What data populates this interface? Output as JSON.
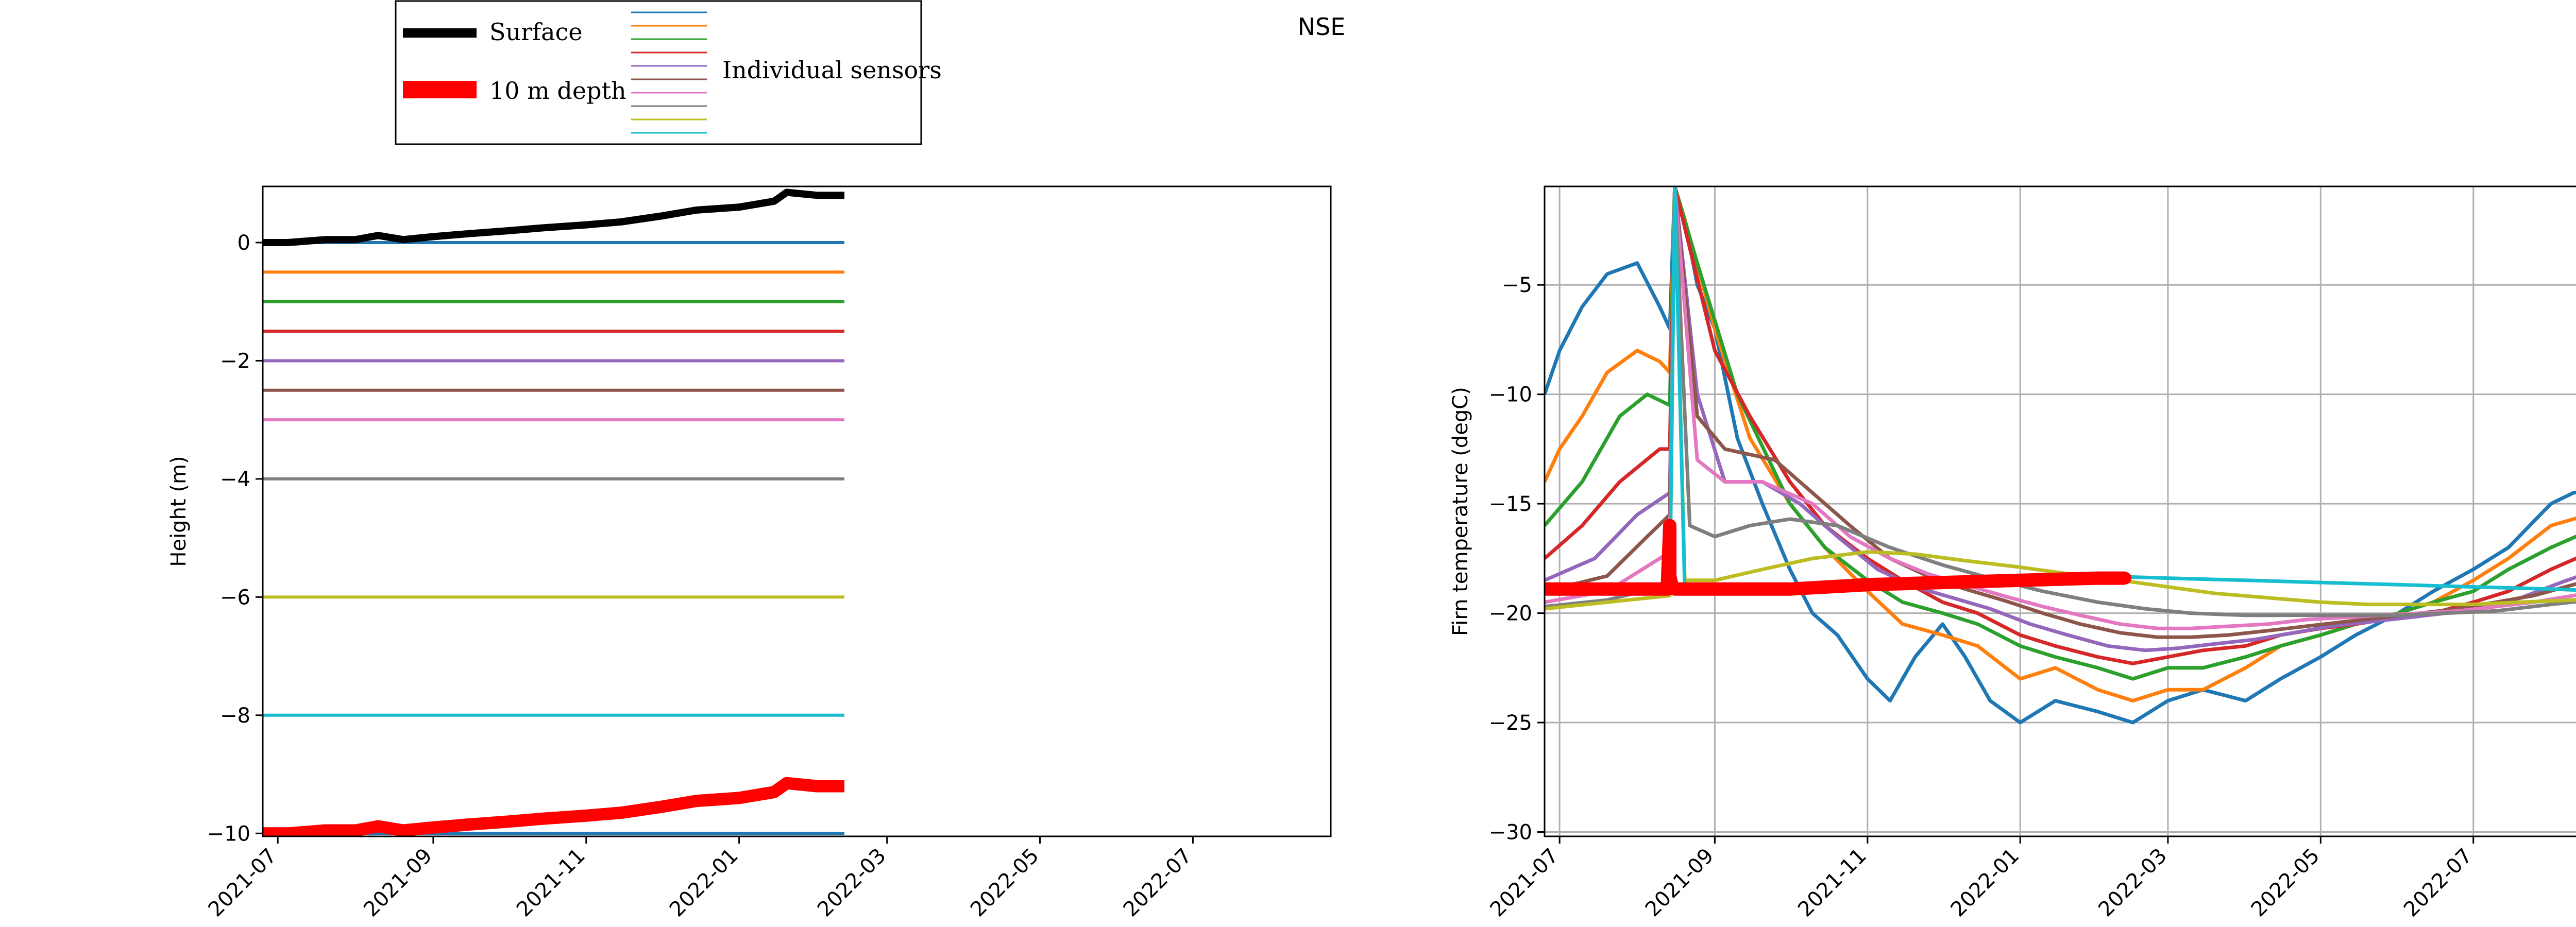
{
  "figure": {
    "title": "NSE"
  },
  "legend": {
    "placement": "top-left, above plots",
    "entries": [
      {
        "label": "Surface",
        "color": "#000000"
      },
      {
        "label": "10 m depth",
        "color": "#ff0000"
      },
      {
        "label": "Individual sensors",
        "colors": [
          "#1f77b4",
          "#ff7f0e",
          "#2ca02c",
          "#d62728",
          "#9467bd",
          "#8c564b",
          "#e377c2",
          "#7f7f7f",
          "#bcbd22",
          "#17becf"
        ]
      }
    ]
  },
  "chart_data": [
    {
      "type": "line",
      "ylabel": "Height (m)",
      "xlabel": "",
      "x_range": [
        "2021-06-25",
        "2022-08-25"
      ],
      "ylim": [
        -10.05,
        0.95
      ],
      "grid": false,
      "x_ticks": [
        "2021-07",
        "2021-09",
        "2021-11",
        "2022-01",
        "2022-03",
        "2022-05",
        "2022-07"
      ],
      "y_ticks": [
        0,
        -2,
        -4,
        -6,
        -8,
        -10
      ],
      "sensor_colors": [
        "#1f77b4",
        "#ff7f0e",
        "#2ca02c",
        "#d62728",
        "#9467bd",
        "#8c564b",
        "#e377c2",
        "#7f7f7f",
        "#bcbd22",
        "#17becf",
        "#1f77b4"
      ],
      "sensor_depths": [
        0,
        -0.5,
        -1,
        -1.5,
        -2,
        -2.5,
        -3,
        -4,
        -6,
        -8,
        -10
      ],
      "sensor_x_range": [
        "2021-06-25",
        "2022-02-12"
      ],
      "surface": {
        "name": "Surface",
        "color": "#000000",
        "x": [
          "2021-06-25",
          "2021-07-05",
          "2021-07-20",
          "2021-08-01",
          "2021-08-10",
          "2021-08-20",
          "2021-09-01",
          "2021-09-15",
          "2021-10-01",
          "2021-10-15",
          "2021-11-01",
          "2021-11-15",
          "2021-12-01",
          "2021-12-15",
          "2022-01-01",
          "2022-01-15",
          "2022-01-20",
          "2022-02-01",
          "2022-02-12"
        ],
        "y": [
          0.0,
          0.0,
          0.05,
          0.05,
          0.12,
          0.05,
          0.1,
          0.15,
          0.2,
          0.25,
          0.3,
          0.35,
          0.45,
          0.55,
          0.6,
          0.7,
          0.85,
          0.8,
          0.8
        ]
      },
      "depth10": {
        "name": "10 m depth",
        "color": "#ff0000",
        "x": [
          "2021-06-25",
          "2021-07-05",
          "2021-07-20",
          "2021-08-01",
          "2021-08-10",
          "2021-08-20",
          "2021-09-01",
          "2021-09-15",
          "2021-10-01",
          "2021-10-15",
          "2021-11-01",
          "2021-11-15",
          "2021-12-01",
          "2021-12-15",
          "2022-01-01",
          "2022-01-15",
          "2022-01-20",
          "2022-02-01",
          "2022-02-12"
        ],
        "y": [
          -10.0,
          -10.0,
          -9.95,
          -9.95,
          -9.88,
          -9.95,
          -9.9,
          -9.85,
          -9.8,
          -9.75,
          -9.7,
          -9.65,
          -9.55,
          -9.45,
          -9.4,
          -9.3,
          -9.15,
          -9.2,
          -9.2
        ]
      }
    },
    {
      "type": "line",
      "ylabel": "Firn temperature (degC)",
      "xlabel": "",
      "x_range": [
        "2021-06-25",
        "2022-08-25"
      ],
      "ylim": [
        -30.2,
        -0.5
      ],
      "grid": true,
      "x_ticks": [
        "2021-07",
        "2021-09",
        "2021-11",
        "2022-01",
        "2022-03",
        "2022-05",
        "2022-07"
      ],
      "y_ticks": [
        -5,
        -10,
        -15,
        -20,
        -25,
        -30
      ],
      "series": [
        {
          "color": "#1f77b4",
          "x": [
            "2021-06-25",
            "2021-07-01",
            "2021-07-10",
            "2021-07-20",
            "2021-08-01",
            "2021-08-10",
            "2021-08-14",
            "2021-08-16",
            "2021-08-20",
            "2021-08-25",
            "2021-09-01",
            "2021-09-10",
            "2021-09-20",
            "2021-10-01",
            "2021-10-10",
            "2021-10-20",
            "2021-11-01",
            "2021-11-10",
            "2021-11-20",
            "2021-12-01",
            "2021-12-10",
            "2021-12-20",
            "2022-01-01",
            "2022-01-15",
            "2022-02-01",
            "2022-02-15",
            "2022-03-01",
            "2022-03-15",
            "2022-04-01",
            "2022-04-15",
            "2022-05-01",
            "2022-05-15",
            "2022-06-01",
            "2022-06-15",
            "2022-07-01",
            "2022-07-15",
            "2022-08-01",
            "2022-08-10",
            "2022-08-25"
          ],
          "y": [
            -10,
            -8,
            -6,
            -4.5,
            -4,
            -6,
            -7,
            -0.5,
            -2,
            -5,
            -7,
            -12,
            -15,
            -18,
            -20,
            -21,
            -23,
            -24,
            -22,
            -20.5,
            -22,
            -24,
            -25,
            -24,
            -24.5,
            -25,
            -24,
            -23.5,
            -24,
            -23,
            -22,
            -21,
            -20,
            -19,
            -18,
            -17,
            -15,
            -14.5,
            -14.3
          ]
        },
        {
          "color": "#ff7f0e",
          "x": [
            "2021-06-25",
            "2021-07-01",
            "2021-07-10",
            "2021-07-20",
            "2021-08-01",
            "2021-08-10",
            "2021-08-14",
            "2021-08-16",
            "2021-08-20",
            "2021-09-01",
            "2021-09-15",
            "2021-10-01",
            "2021-10-15",
            "2021-11-01",
            "2021-11-15",
            "2021-12-01",
            "2021-12-15",
            "2022-01-01",
            "2022-01-15",
            "2022-02-01",
            "2022-02-15",
            "2022-03-01",
            "2022-03-15",
            "2022-04-01",
            "2022-04-15",
            "2022-05-01",
            "2022-05-15",
            "2022-06-01",
            "2022-06-15",
            "2022-07-01",
            "2022-07-15",
            "2022-08-01",
            "2022-08-25"
          ],
          "y": [
            -14,
            -12.5,
            -11,
            -9,
            -8,
            -8.5,
            -9,
            -0.5,
            -2,
            -7,
            -12,
            -15,
            -17,
            -19,
            -20.5,
            -21,
            -21.5,
            -23,
            -22.5,
            -23.5,
            -24,
            -23.5,
            -23.5,
            -22.5,
            -21.5,
            -21,
            -20.5,
            -20,
            -19.5,
            -18.5,
            -17.5,
            -16,
            -15.2
          ]
        },
        {
          "color": "#2ca02c",
          "x": [
            "2021-06-25",
            "2021-07-10",
            "2021-07-25",
            "2021-08-05",
            "2021-08-14",
            "2021-08-16",
            "2021-08-25",
            "2021-09-10",
            "2021-10-01",
            "2021-10-15",
            "2021-11-01",
            "2021-11-15",
            "2021-12-01",
            "2021-12-15",
            "2022-01-01",
            "2022-01-15",
            "2022-02-01",
            "2022-02-15",
            "2022-03-01",
            "2022-03-15",
            "2022-04-01",
            "2022-04-15",
            "2022-05-01",
            "2022-05-15",
            "2022-06-01",
            "2022-06-15",
            "2022-07-01",
            "2022-07-15",
            "2022-08-01",
            "2022-08-25"
          ],
          "y": [
            -16,
            -14,
            -11,
            -10,
            -10.5,
            -0.5,
            -4,
            -10,
            -15,
            -17,
            -18.5,
            -19.5,
            -20,
            -20.5,
            -21.5,
            -22,
            -22.5,
            -23,
            -22.5,
            -22.5,
            -22,
            -21.5,
            -21,
            -20.5,
            -20,
            -19.5,
            -19,
            -18,
            -17,
            -15.8
          ]
        },
        {
          "color": "#d62728",
          "x": [
            "2021-06-25",
            "2021-07-10",
            "2021-07-25",
            "2021-08-10",
            "2021-08-14",
            "2021-08-16",
            "2021-09-01",
            "2021-09-15",
            "2021-10-01",
            "2021-10-15",
            "2021-11-01",
            "2021-11-15",
            "2021-12-01",
            "2021-12-15",
            "2022-01-01",
            "2022-01-15",
            "2022-02-01",
            "2022-02-15",
            "2022-03-01",
            "2022-03-15",
            "2022-04-01",
            "2022-04-15",
            "2022-05-01",
            "2022-05-15",
            "2022-06-01",
            "2022-06-15",
            "2022-07-01",
            "2022-07-15",
            "2022-08-01",
            "2022-08-25"
          ],
          "y": [
            -17.5,
            -16,
            -14,
            -12.5,
            -12.5,
            -0.5,
            -8,
            -11,
            -14,
            -16,
            -17.5,
            -18.5,
            -19.5,
            -20,
            -21,
            -21.5,
            -22,
            -22.3,
            -22,
            -21.7,
            -21.5,
            -21,
            -20.7,
            -20.5,
            -20.2,
            -20,
            -19.5,
            -19,
            -18,
            -16.8
          ]
        },
        {
          "color": "#9467bd",
          "x": [
            "2021-06-25",
            "2021-07-15",
            "2021-08-01",
            "2021-08-14",
            "2021-08-16",
            "2021-08-25",
            "2021-09-05",
            "2021-09-20",
            "2021-10-05",
            "2021-10-20",
            "2021-11-05",
            "2021-11-20",
            "2021-12-05",
            "2021-12-20",
            "2022-01-05",
            "2022-01-20",
            "2022-02-05",
            "2022-02-20",
            "2022-03-05",
            "2022-03-20",
            "2022-04-05",
            "2022-04-20",
            "2022-05-05",
            "2022-05-20",
            "2022-06-05",
            "2022-06-20",
            "2022-07-05",
            "2022-07-20",
            "2022-08-05",
            "2022-08-25"
          ],
          "y": [
            -18.5,
            -17.5,
            -15.5,
            -14.5,
            -0.5,
            -10,
            -14,
            -14,
            -15,
            -16.5,
            -18,
            -18.8,
            -19.3,
            -19.8,
            -20.5,
            -21,
            -21.5,
            -21.7,
            -21.6,
            -21.4,
            -21.2,
            -20.9,
            -20.6,
            -20.4,
            -20.2,
            -20,
            -19.7,
            -19.3,
            -18.6,
            -17.8
          ]
        },
        {
          "color": "#8c564b",
          "x": [
            "2021-06-25",
            "2021-07-20",
            "2021-08-05",
            "2021-08-14",
            "2021-08-16",
            "2021-08-25",
            "2021-09-05",
            "2021-09-25",
            "2021-10-10",
            "2021-10-25",
            "2021-11-10",
            "2021-11-25",
            "2021-12-10",
            "2021-12-25",
            "2022-01-10",
            "2022-01-25",
            "2022-02-10",
            "2022-02-25",
            "2022-03-10",
            "2022-03-25",
            "2022-04-10",
            "2022-04-25",
            "2022-05-10",
            "2022-05-25",
            "2022-06-10",
            "2022-06-25",
            "2022-07-10",
            "2022-07-25",
            "2022-08-10",
            "2022-08-25"
          ],
          "y": [
            -19,
            -18.3,
            -16.5,
            -15.5,
            -0.5,
            -11,
            -12.5,
            -13,
            -14.5,
            -16,
            -17.5,
            -18.3,
            -18.9,
            -19.4,
            -20,
            -20.5,
            -20.9,
            -21.1,
            -21.1,
            -21,
            -20.8,
            -20.6,
            -20.4,
            -20.2,
            -20,
            -19.8,
            -19.5,
            -19.2,
            -18.7,
            -18.2
          ]
        },
        {
          "color": "#e377c2",
          "x": [
            "2021-06-25",
            "2021-07-20",
            "2021-08-10",
            "2021-08-14",
            "2021-08-16",
            "2021-08-25",
            "2021-09-05",
            "2021-09-20",
            "2021-10-10",
            "2021-10-25",
            "2021-11-10",
            "2021-11-25",
            "2021-12-10",
            "2021-12-25",
            "2022-01-10",
            "2022-01-25",
            "2022-02-10",
            "2022-02-25",
            "2022-03-10",
            "2022-03-25",
            "2022-04-10",
            "2022-04-25",
            "2022-05-10",
            "2022-05-25",
            "2022-06-10",
            "2022-06-25",
            "2022-07-10",
            "2022-07-25",
            "2022-08-10",
            "2022-08-25"
          ],
          "y": [
            -19.5,
            -19,
            -17.5,
            -17.2,
            -0.5,
            -13,
            -14,
            -14,
            -15,
            -16.5,
            -17.5,
            -18.2,
            -18.7,
            -19.2,
            -19.7,
            -20.1,
            -20.5,
            -20.7,
            -20.7,
            -20.6,
            -20.5,
            -20.3,
            -20.2,
            -20.1,
            -20,
            -19.9,
            -19.7,
            -19.5,
            -19.2,
            -18.8
          ]
        },
        {
          "color": "#7f7f7f",
          "x": [
            "2021-06-25",
            "2021-07-20",
            "2021-08-10",
            "2021-08-14",
            "2021-08-16",
            "2021-08-22",
            "2021-09-01",
            "2021-09-15",
            "2021-10-01",
            "2021-10-20",
            "2021-11-10",
            "2021-12-01",
            "2021-12-20",
            "2022-01-10",
            "2022-02-01",
            "2022-02-20",
            "2022-03-10",
            "2022-04-01",
            "2022-04-20",
            "2022-05-10",
            "2022-06-01",
            "2022-06-20",
            "2022-07-10",
            "2022-08-01",
            "2022-08-25"
          ],
          "y": [
            -19.7,
            -19.4,
            -18.8,
            -18.5,
            -0.5,
            -16,
            -16.5,
            -16,
            -15.7,
            -16,
            -17,
            -17.8,
            -18.4,
            -19,
            -19.5,
            -19.8,
            -20,
            -20.1,
            -20.1,
            -20.1,
            -20.1,
            -20,
            -19.9,
            -19.6,
            -19.3
          ]
        },
        {
          "color": "#bcbd22",
          "x": [
            "2021-06-25",
            "2021-07-20",
            "2021-08-14",
            "2021-08-16",
            "2021-08-20",
            "2021-09-01",
            "2021-09-20",
            "2021-10-10",
            "2021-11-01",
            "2021-11-20",
            "2021-12-10",
            "2022-01-01",
            "2022-01-20",
            "2022-02-10",
            "2022-03-01",
            "2022-03-20",
            "2022-04-10",
            "2022-05-01",
            "2022-05-20",
            "2022-06-10",
            "2022-07-01",
            "2022-07-20",
            "2022-08-10",
            "2022-08-25"
          ],
          "y": [
            -19.8,
            -19.5,
            -19.2,
            -0.5,
            -18.5,
            -18.5,
            -18,
            -17.5,
            -17.2,
            -17.3,
            -17.6,
            -17.9,
            -18.2,
            -18.5,
            -18.8,
            -19.1,
            -19.3,
            -19.5,
            -19.6,
            -19.6,
            -19.6,
            -19.5,
            -19.4,
            -19.3
          ]
        },
        {
          "color": "#17becf",
          "x": [
            "2021-06-25",
            "2021-08-14",
            "2021-08-16",
            "2021-08-20",
            "2021-09-01",
            "2021-10-01",
            "2021-11-01",
            "2021-12-01",
            "2022-01-01",
            "2022-02-01",
            "2022-03-01",
            "2022-04-01",
            "2022-05-01",
            "2022-06-01",
            "2022-07-01",
            "2022-08-01",
            "2022-08-25"
          ],
          "y": [
            -18.9,
            -18.9,
            -0.5,
            -18.9,
            -18.9,
            -18.8,
            -18.6,
            -18.4,
            -18.3,
            -18.3,
            -18.4,
            -18.5,
            -18.6,
            -18.7,
            -18.8,
            -18.9,
            -19
          ]
        },
        {
          "color": "#ff0000",
          "name": "10 m depth",
          "x": [
            "2021-06-25",
            "2021-08-01",
            "2021-08-13",
            "2021-08-14",
            "2021-08-14",
            "2021-08-15",
            "2021-08-16",
            "2021-09-01",
            "2021-10-01",
            "2021-11-01",
            "2021-12-01",
            "2022-01-01",
            "2022-02-01",
            "2022-02-12"
          ],
          "y": [
            -18.9,
            -18.9,
            -18.9,
            -16,
            -18.3,
            -18.8,
            -18.9,
            -18.9,
            -18.9,
            -18.7,
            -18.6,
            -18.5,
            -18.4,
            -18.4
          ],
          "marker": true
        }
      ]
    }
  ]
}
